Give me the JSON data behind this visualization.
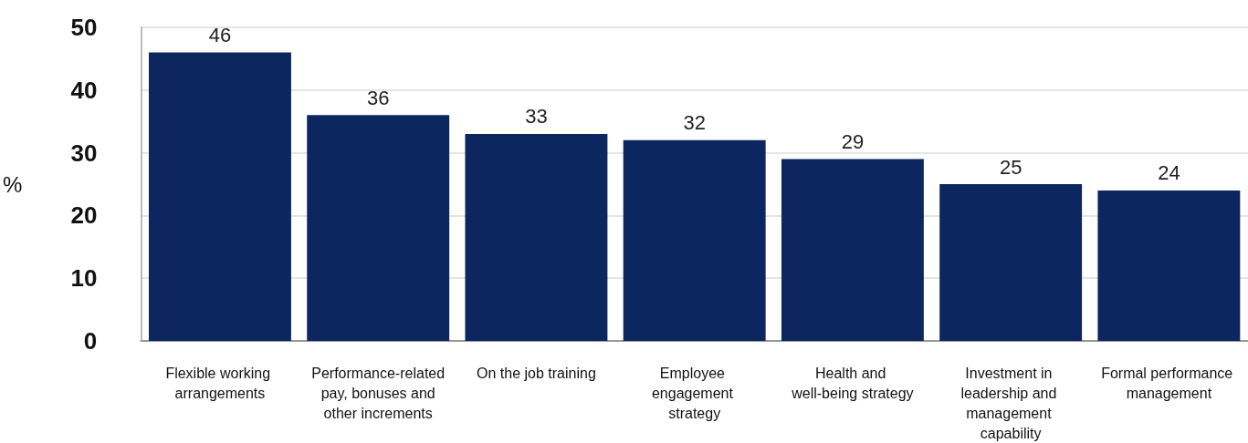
{
  "chart_data": {
    "type": "bar",
    "ylabel": "%",
    "categories": [
      "Flexible working arrangements",
      "Performance-related pay, bonuses and other increments",
      "On the job training",
      "Employee engagement strategy",
      "Health and well-being strategy",
      "Investment in leadership and management capability",
      "Formal performance management"
    ],
    "values": [
      46,
      36,
      33,
      32,
      29,
      25,
      24
    ],
    "color": "#0c2660",
    "ylim": [
      0,
      50
    ],
    "yticks": [
      0,
      10,
      20,
      30,
      40,
      50
    ],
    "grid": "y",
    "data_labels": true
  }
}
